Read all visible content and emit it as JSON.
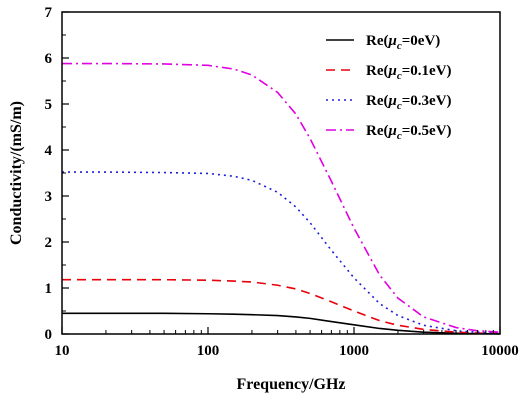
{
  "chart_data": {
    "type": "line",
    "xlabel": "Frequency/GHz",
    "ylabel": "Conductivity/(mS/m)",
    "x_scale": "log",
    "xlim": [
      10,
      10000
    ],
    "ylim": [
      0,
      7
    ],
    "x_ticks": [
      "10",
      "100",
      "1000",
      "10000"
    ],
    "x_tick_values": [
      10,
      100,
      1000,
      10000
    ],
    "y_ticks": [
      "0",
      "1",
      "2",
      "3",
      "4",
      "5",
      "6",
      "7"
    ],
    "y_tick_values": [
      0,
      1,
      2,
      3,
      4,
      5,
      6,
      7
    ],
    "grid": false,
    "legend_position": "top-right",
    "x": [
      10,
      20,
      50,
      100,
      150,
      200,
      300,
      400,
      500,
      700,
      1000,
      1500,
      2000,
      3000,
      5000,
      7000,
      10000
    ],
    "series": [
      {
        "label_prefix": "Re(",
        "label_symbol": "μ",
        "label_sub": "c",
        "label_suffix": "=0eV)",
        "color": "#000000",
        "dash": "",
        "values": [
          0.45,
          0.45,
          0.45,
          0.44,
          0.43,
          0.42,
          0.4,
          0.37,
          0.34,
          0.27,
          0.2,
          0.12,
          0.08,
          0.04,
          0.015,
          0.008,
          0.004
        ]
      },
      {
        "label_prefix": "Re(",
        "label_symbol": "μ",
        "label_sub": "c",
        "label_suffix": "=0.1eV)",
        "color": "#e8000b",
        "dash": "9,6",
        "values": [
          1.18,
          1.18,
          1.18,
          1.17,
          1.15,
          1.13,
          1.06,
          0.98,
          0.88,
          0.7,
          0.5,
          0.29,
          0.19,
          0.1,
          0.04,
          0.02,
          0.01
        ]
      },
      {
        "label_prefix": "Re(",
        "label_symbol": "μ",
        "label_sub": "c",
        "label_suffix": "=0.3eV)",
        "color": "#1f1fd6",
        "dash": "2,4",
        "values": [
          3.52,
          3.52,
          3.51,
          3.49,
          3.43,
          3.34,
          3.08,
          2.76,
          2.42,
          1.82,
          1.22,
          0.66,
          0.4,
          0.19,
          0.07,
          0.04,
          0.02
        ]
      },
      {
        "label_prefix": "Re(",
        "label_symbol": "μ",
        "label_sub": "c",
        "label_suffix": "=0.5eV)",
        "color": "#e000e0",
        "dash": "10,4,2,4",
        "values": [
          5.88,
          5.88,
          5.87,
          5.84,
          5.76,
          5.63,
          5.25,
          4.78,
          4.25,
          3.32,
          2.3,
          1.28,
          0.78,
          0.37,
          0.14,
          0.07,
          0.04
        ]
      }
    ]
  }
}
